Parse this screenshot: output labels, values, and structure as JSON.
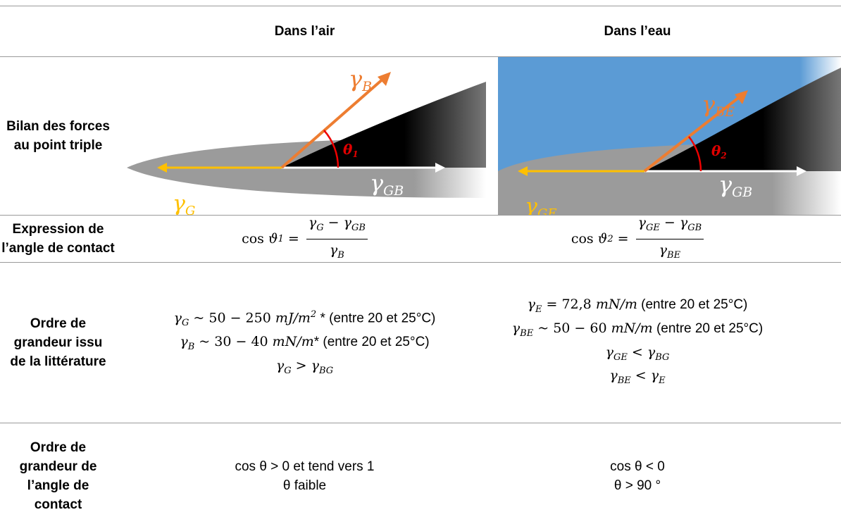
{
  "table": {
    "headers": [
      "Dans l’air",
      "Dans l’eau"
    ],
    "row_labels": [
      "Bilan des forces au point triple",
      "Expression de l’angle de contact",
      "Ordre de grandeur issu de la littérature",
      "Ordre de grandeur de l’angle de contact"
    ],
    "diagrams": [
      {
        "labels": [
          {
            "m": "γ",
            "sub": "B"
          },
          {
            "s": "θ",
            "sub": "1"
          },
          {
            "m": "γ",
            "sub": "GB"
          },
          {
            "m": "γ",
            "sub": "G"
          }
        ]
      },
      {
        "labels": [
          {
            "m": "γ",
            "sub": "BE"
          },
          {
            "s": "θ",
            "sub": "2"
          },
          {
            "m": "γ",
            "sub": "GB"
          },
          {
            "m": "γ",
            "sub": "GE"
          }
        ]
      }
    ],
    "expressions": [
      [
        {
          "r": "cos "
        },
        {
          "m": "ϑ",
          "sub": "1"
        },
        {
          "r": " = "
        },
        {
          "frac": {
            "num": [
              {
                "m": "γ",
                "sub": "G"
              },
              {
                "r": " − "
              },
              {
                "m": "γ",
                "sub": "GB"
              }
            ],
            "den": [
              {
                "m": "γ",
                "sub": "B"
              }
            ]
          }
        }
      ],
      [
        {
          "r": "cos "
        },
        {
          "m": "ϑ",
          "sub": "2"
        },
        {
          "r": " = "
        },
        {
          "frac": {
            "num": [
              {
                "m": "γ",
                "sub": "GE"
              },
              {
                "r": " − "
              },
              {
                "m": "γ",
                "sub": "GB"
              }
            ],
            "den": [
              {
                "m": "γ",
                "sub": "BE"
              }
            ]
          }
        }
      ]
    ],
    "literature": [
      [
        [
          {
            "m": "γ",
            "sub": "G"
          },
          {
            "r": " ~ 50 − 250 "
          },
          {
            "m": "mJ/m",
            "sup": "2"
          },
          " * (entre 20 et 25°C)"
        ],
        [
          {
            "m": "γ",
            "sub": "B"
          },
          {
            "r": " ~ 30 − 40 "
          },
          {
            "m": "mN/m"
          },
          "* (entre 20 et 25°C)"
        ],
        [
          {
            "m": "γ",
            "sub": "G"
          },
          {
            "r": " > "
          },
          {
            "m": "γ",
            "sub": "BG"
          }
        ]
      ],
      [
        [
          {
            "m": "γ",
            "sub": "E"
          },
          {
            "r": " = 72,8 "
          },
          {
            "m": "mN/m"
          },
          " (entre 20 et 25°C)"
        ],
        [
          {
            "m": "γ",
            "sub": "BE"
          },
          {
            "r": " ~ 50 − 60 "
          },
          {
            "m": "mN/m"
          },
          " (entre 20 et 25°C)"
        ],
        [
          {
            "m": "γ",
            "sub": "GE"
          },
          {
            "r": " < "
          },
          {
            "m": "γ",
            "sub": "BG"
          }
        ],
        [
          {
            "m": "γ",
            "sub": "BE"
          },
          {
            "r": " < "
          },
          {
            "m": "γ",
            "sub": "E"
          }
        ]
      ]
    ],
    "angles": [
      [
        "cos θ > 0 et tend vers 1",
        "θ faible"
      ],
      [
        "cos θ < 0",
        "θ > 90 °"
      ]
    ]
  }
}
